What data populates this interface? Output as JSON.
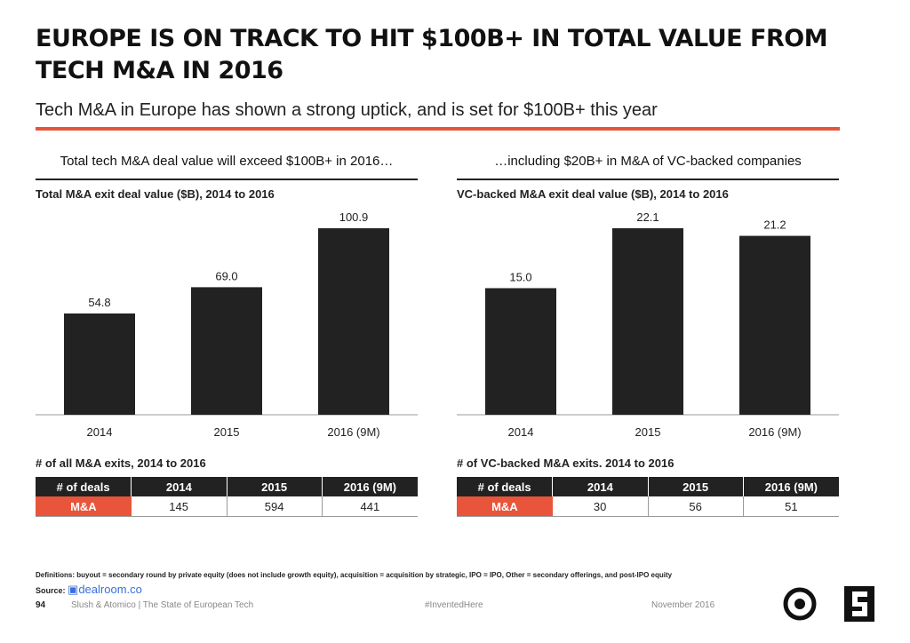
{
  "header": {
    "title": "EUROPE IS ON TRACK TO HIT $100B+ IN TOTAL VALUE FROM TECH M&A IN 2016",
    "subtitle": "Tech M&A in Europe has shown a strong uptick, and is set for $100B+ this year"
  },
  "left": {
    "heading": "Total tech M&A deal value will exceed $100B+ in 2016…",
    "table_title": "# of all M&A exits, 2014 to 2016",
    "table": {
      "headers": [
        "# of deals",
        "2014",
        "2015",
        "2016 (9M)"
      ],
      "row": [
        "M&A",
        "145",
        "594",
        "441"
      ]
    }
  },
  "right": {
    "heading": "…including $20B+ in M&A of VC-backed companies",
    "table_title": "# of VC-backed M&A exits. 2014 to 2016",
    "table": {
      "headers": [
        "# of deals",
        "2014",
        "2015",
        "2016 (9M)"
      ],
      "row": [
        "M&A",
        "30",
        "56",
        "51"
      ]
    }
  },
  "chart_data": [
    {
      "type": "bar",
      "title": "Total M&A exit deal value ($B), 2014 to 2016",
      "categories": [
        "2014",
        "2015",
        "2016 (9M)"
      ],
      "values": [
        54.8,
        69.0,
        100.9
      ],
      "labels": [
        "54.8",
        "69.0",
        "100.9"
      ],
      "ylim": [
        0,
        100.9
      ],
      "color": "#222222",
      "grid": false
    },
    {
      "type": "bar",
      "title": "VC-backed M&A exit deal value ($B), 2014 to 2016",
      "categories": [
        "2014",
        "2015",
        "2016 (9M)"
      ],
      "values": [
        15.0,
        22.1,
        21.2
      ],
      "labels": [
        "15.0",
        "22.1",
        "21.2"
      ],
      "ylim": [
        0,
        22.1
      ],
      "color": "#222222",
      "grid": false
    }
  ],
  "footer": {
    "definitions": "Definitions: buyout = secondary round by private equity (does not include growth equity), acquisition = acquisition by strategic, IPO = IPO, Other = secondary offerings, and post-IPO equity",
    "source_label": "Source:",
    "source_name": "dealroom.co",
    "page": "94",
    "publisher": "Slush & Atomico  |  The State of European Tech",
    "hashtag": "#InventedHere",
    "date": "November 2016"
  },
  "colors": {
    "accent": "#e8553a",
    "bar": "#222222"
  }
}
